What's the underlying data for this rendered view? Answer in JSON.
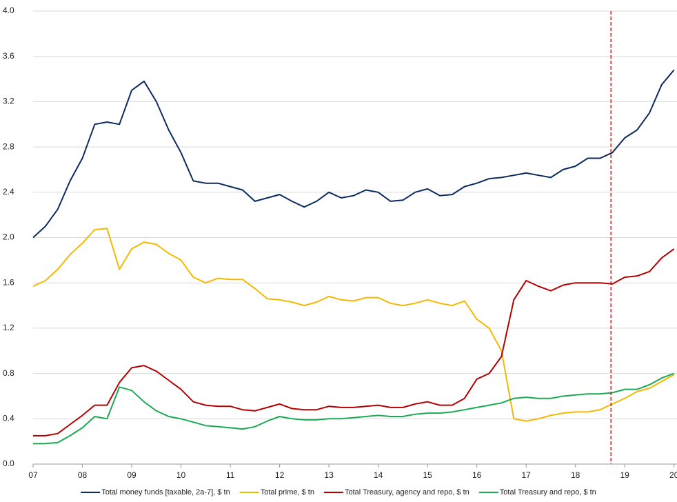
{
  "chart_data": {
    "type": "line",
    "x": [
      7,
      7.25,
      7.5,
      7.75,
      8,
      8.25,
      8.5,
      8.75,
      9,
      9.25,
      9.5,
      9.75,
      10,
      10.25,
      10.5,
      10.75,
      11,
      11.25,
      11.5,
      11.75,
      12,
      12.25,
      12.5,
      12.75,
      13,
      13.25,
      13.5,
      13.75,
      14,
      14.25,
      14.5,
      14.75,
      15,
      15.25,
      15.5,
      15.75,
      16,
      16.25,
      16.5,
      16.75,
      17,
      17.25,
      17.5,
      17.75,
      18,
      18.25,
      18.5,
      18.75,
      19,
      19.25,
      19.5,
      19.75,
      20
    ],
    "series": [
      {
        "name": "Total money funds [taxable, 2a-7], $ tn",
        "color": "#0b2a5e",
        "values": [
          2.0,
          2.1,
          2.25,
          2.5,
          2.7,
          3.0,
          3.02,
          3.0,
          3.3,
          3.38,
          3.2,
          2.95,
          2.75,
          2.5,
          2.48,
          2.48,
          2.45,
          2.42,
          2.32,
          2.35,
          2.38,
          2.32,
          2.27,
          2.32,
          2.4,
          2.35,
          2.37,
          2.42,
          2.4,
          2.32,
          2.33,
          2.4,
          2.43,
          2.37,
          2.38,
          2.45,
          2.48,
          2.52,
          2.53,
          2.55,
          2.57,
          2.55,
          2.53,
          2.6,
          2.63,
          2.7,
          2.7,
          2.75,
          2.88,
          2.95,
          3.1,
          3.35,
          3.48
        ]
      },
      {
        "name": "Total prime, $ tn",
        "color": "#f5b800",
        "values": [
          1.57,
          1.62,
          1.72,
          1.85,
          1.95,
          2.07,
          2.08,
          1.72,
          1.9,
          1.96,
          1.94,
          1.86,
          1.8,
          1.65,
          1.6,
          1.64,
          1.63,
          1.63,
          1.55,
          1.46,
          1.45,
          1.43,
          1.4,
          1.43,
          1.48,
          1.45,
          1.44,
          1.47,
          1.47,
          1.42,
          1.4,
          1.42,
          1.45,
          1.42,
          1.4,
          1.44,
          1.28,
          1.2,
          1.0,
          0.4,
          0.38,
          0.4,
          0.43,
          0.45,
          0.46,
          0.46,
          0.48,
          0.53,
          0.58,
          0.64,
          0.67,
          0.73,
          0.79
        ]
      },
      {
        "name": "Total Treasury, agency and repo, $ tn",
        "color": "#b30000",
        "values": [
          0.25,
          0.25,
          0.27,
          0.35,
          0.43,
          0.52,
          0.52,
          0.72,
          0.85,
          0.87,
          0.82,
          0.74,
          0.66,
          0.55,
          0.52,
          0.51,
          0.51,
          0.48,
          0.47,
          0.5,
          0.53,
          0.49,
          0.48,
          0.48,
          0.51,
          0.5,
          0.5,
          0.51,
          0.52,
          0.5,
          0.5,
          0.53,
          0.55,
          0.52,
          0.52,
          0.58,
          0.75,
          0.8,
          0.95,
          1.45,
          1.62,
          1.57,
          1.53,
          1.58,
          1.6,
          1.6,
          1.6,
          1.59,
          1.65,
          1.66,
          1.7,
          1.82,
          1.9
        ]
      },
      {
        "name": "Total Treasury and repo, $ tn",
        "color": "#1aaa55",
        "values": [
          0.18,
          0.18,
          0.19,
          0.25,
          0.32,
          0.42,
          0.4,
          0.68,
          0.65,
          0.55,
          0.47,
          0.42,
          0.4,
          0.37,
          0.34,
          0.33,
          0.32,
          0.31,
          0.33,
          0.38,
          0.42,
          0.4,
          0.39,
          0.39,
          0.4,
          0.4,
          0.41,
          0.42,
          0.43,
          0.42,
          0.42,
          0.44,
          0.45,
          0.45,
          0.46,
          0.48,
          0.5,
          0.52,
          0.54,
          0.58,
          0.59,
          0.58,
          0.58,
          0.6,
          0.61,
          0.62,
          0.62,
          0.63,
          0.66,
          0.66,
          0.7,
          0.76,
          0.8
        ]
      }
    ],
    "xlim": [
      7,
      20.06
    ],
    "xticks": [
      {
        "value": 7,
        "label": "07"
      },
      {
        "value": 8,
        "label": "08"
      },
      {
        "value": 9,
        "label": "09"
      },
      10,
      11,
      12,
      13,
      14,
      15,
      16,
      17,
      18,
      19,
      20
    ],
    "ylim": [
      0,
      4
    ],
    "yticks": [
      {
        "value": 0,
        "label": "0.0"
      },
      {
        "value": 0.4,
        "label": "0.4"
      },
      {
        "value": 0.8,
        "label": "0.8"
      },
      {
        "value": 1.2,
        "label": "1.2"
      },
      {
        "value": 1.6,
        "label": "1.6"
      },
      {
        "value": 2.0,
        "label": "2.0"
      },
      {
        "value": 2.4,
        "label": "2.4"
      },
      {
        "value": 2.8,
        "label": "2.8"
      },
      {
        "value": 3.2,
        "label": "3.2"
      },
      {
        "value": 3.6,
        "label": "3.6"
      },
      {
        "value": 4.0,
        "label": "4.0"
      }
    ],
    "grid": true,
    "reference_line": {
      "x": 18.72,
      "color": "#e00000"
    },
    "legend": "bottom"
  }
}
